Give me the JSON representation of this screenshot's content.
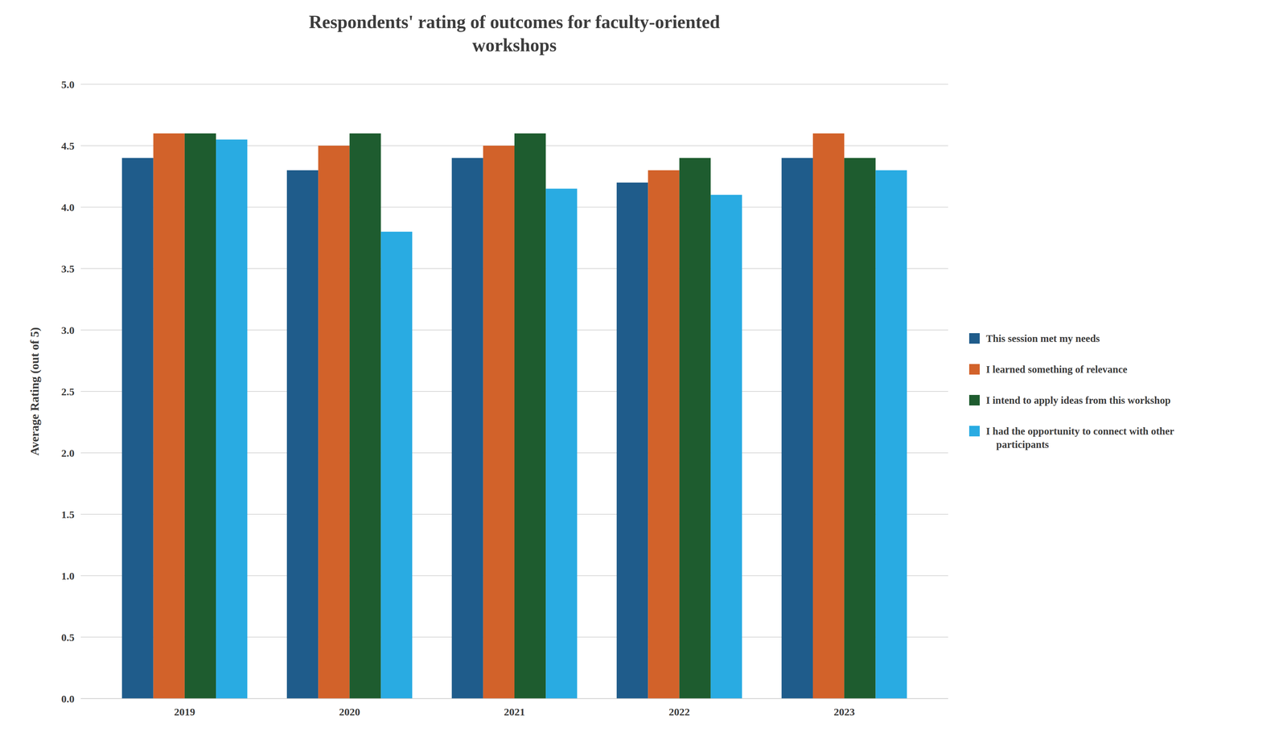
{
  "chart_data": {
    "type": "bar",
    "title": "Respondents' rating of outcomes for faculty-oriented\nworkshops",
    "y_label": "Average Rating (out of 5)",
    "categories": [
      "2019",
      "2020",
      "2021",
      "2022",
      "2023"
    ],
    "series": [
      {
        "name": "This session met my needs",
        "color": "#1f5c8b",
        "values": [
          4.4,
          4.3,
          4.4,
          4.2,
          4.4
        ]
      },
      {
        "name": "I learned something of relevance",
        "color": "#d2622a",
        "values": [
          4.6,
          4.5,
          4.5,
          4.3,
          4.6
        ]
      },
      {
        "name": "I intend to apply ideas from this workshop",
        "color": "#1e5c2f",
        "values": [
          4.6,
          4.6,
          4.6,
          4.4,
          4.4
        ]
      },
      {
        "name": "I had the opportunity to connect with other\n    participants",
        "color": "#29abe2",
        "values": [
          4.55,
          3.8,
          4.15,
          4.1,
          4.3
        ]
      }
    ],
    "ylim": [
      0,
      5.0
    ],
    "yticks": [
      {
        "value": 0,
        "label": "0.0"
      },
      0.5,
      {
        "value": 1,
        "label": "1.0"
      },
      1.5,
      {
        "value": 2,
        "label": "2.0"
      },
      2.5,
      {
        "value": 3,
        "label": "3.0"
      },
      3.5,
      {
        "value": 4,
        "label": "4.0"
      },
      4.5,
      {
        "value": 5,
        "label": "5.0"
      }
    ],
    "grid": true,
    "legend": "right"
  }
}
